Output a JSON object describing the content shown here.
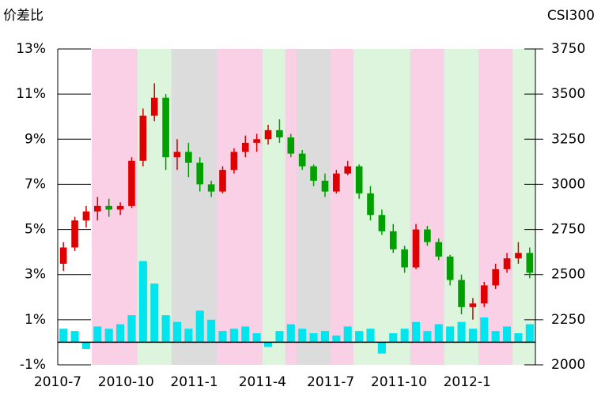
{
  "chart_data": {
    "type": "candlestick",
    "y_label": "价差比",
    "y2_label": "CSI300",
    "categories": [
      "2010-7",
      null,
      null,
      null,
      null,
      null,
      "2010-10",
      null,
      null,
      null,
      null,
      null,
      "2011-1",
      null,
      null,
      null,
      null,
      null,
      "2011-4",
      null,
      null,
      null,
      null,
      null,
      "2011-7",
      null,
      null,
      null,
      null,
      null,
      "2011-10",
      null,
      null,
      null,
      null,
      null,
      "2012-1",
      null,
      null,
      null,
      null,
      null
    ],
    "background_colors": [
      null,
      null,
      null,
      "#f9d0e6",
      "#f9d0e6",
      "#f9d0e6",
      "#f9d0e6",
      "#dcf5dc",
      "#dcf5dc",
      "#dcf5dc",
      "#dcdcdc",
      "#dcdcdc",
      "#dcdcdc",
      "#dcdcdc",
      "#f9d0e6",
      "#f9d0e6",
      "#f9d0e6",
      "#f9d0e6",
      "#dcf5dc",
      "#dcf5dc",
      "#f9d0e6",
      "#dcdcdc",
      "#dcdcdc",
      "#dcdcdc",
      "#f9d0e6",
      "#f9d0e6",
      "#dcf5dc",
      "#dcf5dc",
      "#dcf5dc",
      "#dcf5dc",
      "#dcf5dc",
      "#f9d0e6",
      "#f9d0e6",
      "#f9d0e6",
      "#dcf5dc",
      "#dcf5dc",
      "#dcf5dc",
      "#f9d0e6",
      "#f9d0e6",
      "#f9d0e6",
      "#dcf5dc",
      "#dcf5dc"
    ],
    "candles": {
      "axis": "y2",
      "up_color": "#e00000",
      "down_color": "#00a000",
      "open": [
        2560,
        2650,
        2800,
        2850,
        2880,
        2860,
        2880,
        3130,
        3380,
        3480,
        3150,
        3180,
        3120,
        3000,
        2960,
        3080,
        3180,
        3230,
        3250,
        3300,
        3260,
        3170,
        3100,
        3020,
        2960,
        3060,
        3100,
        2950,
        2830,
        2740,
        2640,
        2540,
        2750,
        2680,
        2600,
        2470,
        2320,
        2340,
        2440,
        2530,
        2590,
        2620
      ],
      "high": [
        2680,
        2820,
        2880,
        2930,
        2920,
        2900,
        3150,
        3420,
        3560,
        3500,
        3250,
        3230,
        3150,
        3020,
        3100,
        3200,
        3270,
        3280,
        3330,
        3360,
        3280,
        3190,
        3110,
        3060,
        3080,
        3130,
        3110,
        2990,
        2860,
        2780,
        2660,
        2780,
        2770,
        2700,
        2610,
        2500,
        2370,
        2460,
        2560,
        2620,
        2680,
        2650
      ],
      "low": [
        2520,
        2630,
        2760,
        2800,
        2820,
        2830,
        2870,
        3100,
        3350,
        3080,
        3080,
        3040,
        2960,
        2930,
        2950,
        3060,
        3150,
        3180,
        3220,
        3230,
        3150,
        3080,
        2990,
        2930,
        2950,
        3050,
        2920,
        2800,
        2720,
        2620,
        2510,
        2530,
        2660,
        2580,
        2440,
        2280,
        2250,
        2320,
        2420,
        2510,
        2560,
        2480
      ],
      "close": [
        2650,
        2800,
        2850,
        2880,
        2860,
        2880,
        3130,
        3380,
        3480,
        3150,
        3180,
        3120,
        3000,
        2960,
        3080,
        3180,
        3230,
        3250,
        3300,
        3260,
        3170,
        3100,
        3020,
        2960,
        3060,
        3100,
        2950,
        2830,
        2740,
        2640,
        2540,
        2750,
        2680,
        2600,
        2470,
        2320,
        2340,
        2440,
        2530,
        2590,
        2620,
        2510
      ]
    },
    "bars": {
      "color": "#00e5ee",
      "values": [
        0.6,
        0.5,
        -0.3,
        0.7,
        0.6,
        0.8,
        1.2,
        3.6,
        2.6,
        1.2,
        0.9,
        0.6,
        1.4,
        1.0,
        0.5,
        0.6,
        0.7,
        0.4,
        -0.2,
        0.5,
        0.8,
        0.6,
        0.4,
        0.5,
        0.3,
        0.7,
        0.5,
        0.6,
        -0.5,
        0.4,
        0.6,
        0.9,
        0.5,
        0.8,
        0.7,
        0.9,
        0.6,
        1.1,
        0.5,
        0.7,
        0.4,
        0.8
      ]
    },
    "ylim": [
      -1,
      13
    ],
    "yticks": [
      {
        "value": -1,
        "label": "-1%"
      },
      {
        "value": 1,
        "label": "1%"
      },
      {
        "value": 3,
        "label": "3%"
      },
      {
        "value": 5,
        "label": "5%"
      },
      {
        "value": 7,
        "label": "7%"
      },
      {
        "value": 9,
        "label": "9%"
      },
      {
        "value": 11,
        "label": "11%"
      },
      {
        "value": 13,
        "label": "13%"
      }
    ],
    "y2lim": [
      2000,
      3750
    ],
    "y2ticks": [
      2000,
      2250,
      2500,
      2750,
      3000,
      3250,
      3500,
      3750
    ]
  }
}
